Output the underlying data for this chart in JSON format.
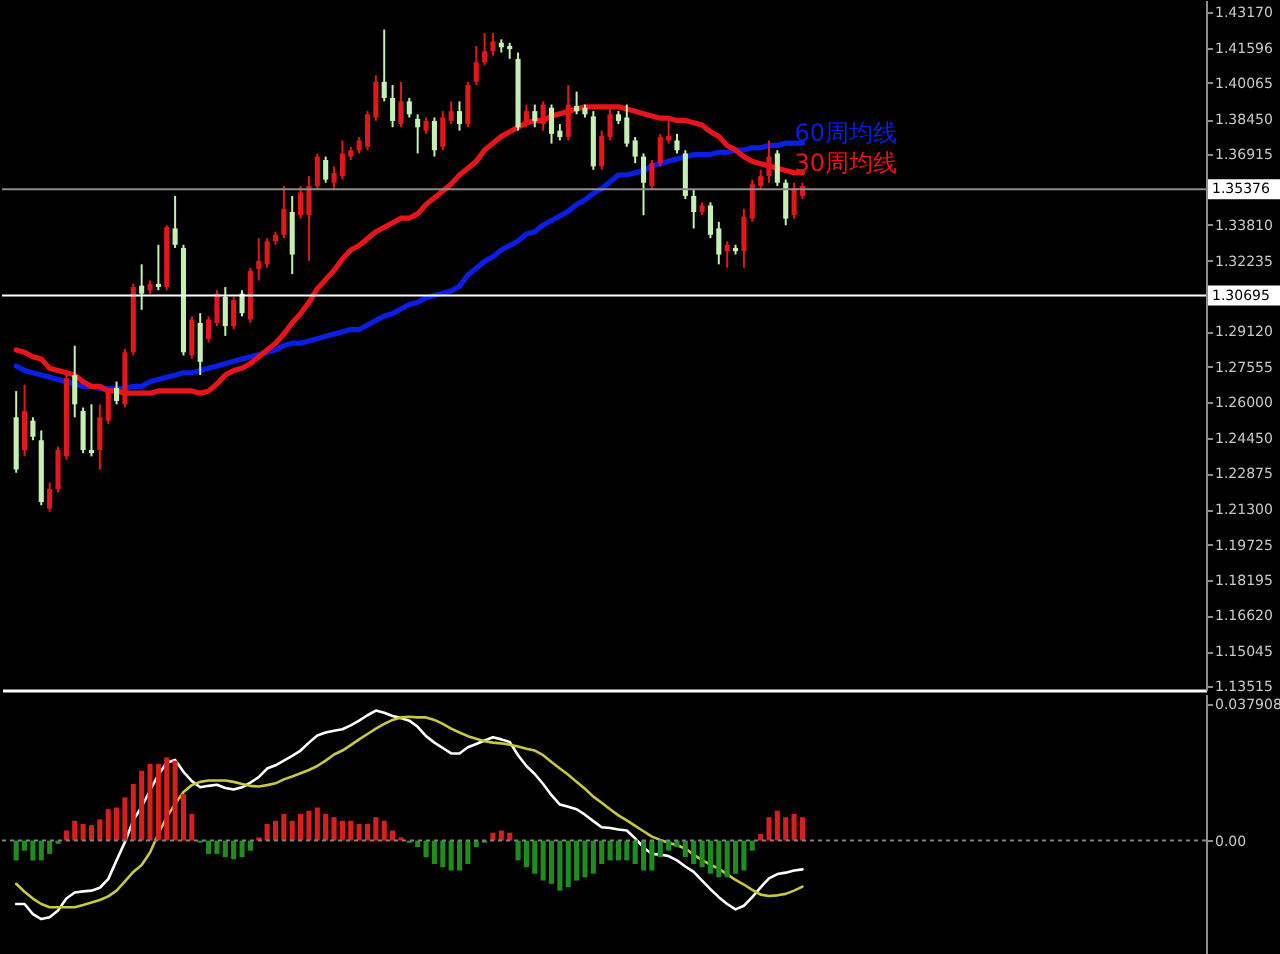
{
  "chart_data": [
    {
      "type": "candlestick",
      "categories": [
        null,
        null,
        null,
        null,
        null,
        null,
        null,
        null,
        null,
        null,
        null,
        null,
        null,
        null,
        null,
        null,
        null,
        null,
        null,
        null,
        null,
        null,
        null,
        null,
        null,
        null,
        null,
        null,
        null,
        null,
        null,
        null,
        null,
        null,
        null,
        null,
        null,
        null,
        null,
        null,
        null,
        null,
        null,
        null,
        null,
        null,
        null,
        null,
        null,
        null,
        null,
        null,
        null,
        null,
        null,
        null,
        null,
        null,
        null,
        null,
        null,
        null,
        null,
        null,
        null,
        null,
        null,
        null,
        null,
        null,
        null,
        null,
        null,
        null,
        null,
        null,
        null,
        null,
        null,
        null,
        null,
        null,
        null,
        null,
        null,
        null,
        null,
        null,
        null,
        null,
        null,
        null,
        null,
        null,
        null
      ],
      "ohlc": [
        [
          1.2534,
          1.2649,
          1.229,
          1.2304
        ],
        [
          1.239,
          1.2677,
          1.2362,
          1.2562
        ],
        [
          1.2519,
          1.2534,
          1.2433,
          1.2448
        ],
        [
          1.2433,
          1.2476,
          1.2147,
          1.2161
        ],
        [
          1.2132,
          1.2247,
          1.2118,
          1.2218
        ],
        [
          1.2218,
          1.2405,
          1.2204,
          1.239
        ],
        [
          1.2362,
          1.2734,
          1.2347,
          1.2706
        ],
        [
          1.272,
          1.2849,
          1.2534,
          1.2591
        ],
        [
          1.2562,
          1.2577,
          1.2376,
          1.239
        ],
        [
          1.239,
          1.2591,
          1.2362,
          1.2376
        ],
        [
          1.239,
          1.2591,
          1.2304,
          1.2534
        ],
        [
          1.2519,
          1.2663,
          1.2505,
          1.2649
        ],
        [
          1.2663,
          1.2691,
          1.2591,
          1.2606
        ],
        [
          1.2591,
          1.2835,
          1.2577,
          1.282
        ],
        [
          1.282,
          1.3121,
          1.2806,
          1.3107
        ],
        [
          1.3113,
          1.3207,
          1.3007,
          1.3078
        ],
        [
          1.3093,
          1.3136,
          1.3078,
          1.3121
        ],
        [
          1.3121,
          1.3293,
          1.3093,
          1.3107
        ],
        [
          1.3107,
          1.3379,
          1.3093,
          1.3371
        ],
        [
          1.3365,
          1.3508,
          1.3279,
          1.3293
        ],
        [
          1.3279,
          1.3293,
          1.2806,
          1.282
        ],
        [
          1.2806,
          1.2978,
          1.2792,
          1.2964
        ],
        [
          1.2949,
          1.2992,
          1.272,
          1.2778
        ],
        [
          1.2878,
          1.2978,
          1.2863,
          1.2964
        ],
        [
          1.2949,
          1.3093,
          1.2935,
          1.3078
        ],
        [
          1.3064,
          1.3107,
          1.2892,
          1.2935
        ],
        [
          1.2935,
          1.3064,
          1.2921,
          1.305
        ],
        [
          1.3078,
          1.3093,
          1.2978,
          1.2992
        ],
        [
          1.2964,
          1.3192,
          1.2949,
          1.3179
        ],
        [
          1.3187,
          1.3322,
          1.3136,
          1.3222
        ],
        [
          1.3207,
          1.3322,
          1.3192,
          1.3308
        ],
        [
          1.3308,
          1.3351,
          1.3293,
          1.3337
        ],
        [
          1.3337,
          1.3552,
          1.3322,
          1.3451
        ],
        [
          1.3437,
          1.3508,
          1.3164,
          1.325
        ],
        [
          1.3423,
          1.3552,
          1.3408,
          1.3523
        ],
        [
          1.3423,
          1.3595,
          1.3222,
          1.3552
        ],
        [
          1.3552,
          1.3695,
          1.3537,
          1.3681
        ],
        [
          1.3666,
          1.3681,
          1.3566,
          1.358
        ],
        [
          1.3566,
          1.3638,
          1.3537,
          1.3609
        ],
        [
          1.3595,
          1.3752,
          1.358,
          1.3695
        ],
        [
          1.3681,
          1.3724,
          1.3666,
          1.3709
        ],
        [
          1.3709,
          1.3767,
          1.3695,
          1.3752
        ],
        [
          1.3724,
          1.3881,
          1.3709,
          1.3867
        ],
        [
          1.3853,
          1.4039,
          1.3838,
          1.401
        ],
        [
          1.401,
          1.424,
          1.3924,
          1.3939
        ],
        [
          1.3939,
          1.3996,
          1.381,
          1.3838
        ],
        [
          1.3824,
          1.401,
          1.381,
          1.3924
        ],
        [
          1.3924,
          1.3939,
          1.3853,
          1.3867
        ],
        [
          1.3847,
          1.3867,
          1.3695,
          1.381
        ],
        [
          1.3795,
          1.3853,
          1.3781,
          1.3838
        ],
        [
          1.3838,
          1.3853,
          1.3681,
          1.3709
        ],
        [
          1.3724,
          1.3881,
          1.3709,
          1.3853
        ],
        [
          1.3838,
          1.3924,
          1.3824,
          1.3881
        ],
        [
          1.3881,
          1.3924,
          1.3795,
          1.3824
        ],
        [
          1.3824,
          1.401,
          1.381,
          1.3996
        ],
        [
          1.401,
          1.4168,
          1.3996,
          1.4096
        ],
        [
          1.4096,
          1.4225,
          1.4082,
          1.4145
        ],
        [
          1.4145,
          1.4225,
          1.4125,
          1.4188
        ],
        [
          1.4182,
          1.4197,
          1.4139,
          1.4162
        ],
        [
          1.4168,
          1.4182,
          1.4111,
          1.4154
        ],
        [
          1.4111,
          1.4139,
          1.3795,
          1.381
        ],
        [
          1.3824,
          1.391,
          1.381,
          1.3881
        ],
        [
          1.3881,
          1.391,
          1.381,
          1.3838
        ],
        [
          1.3824,
          1.3924,
          1.3795,
          1.391
        ],
        [
          1.3896,
          1.391,
          1.3738,
          1.3781
        ],
        [
          1.3795,
          1.3824,
          1.3752,
          1.3767
        ],
        [
          1.3767,
          1.3996,
          1.3752,
          1.391
        ],
        [
          1.3904,
          1.3967,
          1.3867,
          1.3881
        ],
        [
          1.3896,
          1.391,
          1.3853,
          1.3867
        ],
        [
          1.3858,
          1.3881,
          1.3623,
          1.3638
        ],
        [
          1.3638,
          1.3795,
          1.3623,
          1.3772
        ],
        [
          1.3767,
          1.3896,
          1.3752,
          1.3867
        ],
        [
          1.3867,
          1.3881,
          1.3824,
          1.3838
        ],
        [
          1.3853,
          1.391,
          1.3724,
          1.3738
        ],
        [
          1.3752,
          1.3767,
          1.3652,
          1.3681
        ],
        [
          1.3681,
          1.3695,
          1.3423,
          1.3566
        ],
        [
          1.3552,
          1.3666,
          1.3537,
          1.3652
        ],
        [
          1.3652,
          1.3781,
          1.3638,
          1.3767
        ],
        [
          1.3752,
          1.3853,
          1.3738,
          1.3772
        ],
        [
          1.3752,
          1.3781,
          1.3695,
          1.3709
        ],
        [
          1.3695,
          1.3709,
          1.3494,
          1.3508
        ],
        [
          1.3508,
          1.3537,
          1.3365,
          1.3437
        ],
        [
          1.3437,
          1.348,
          1.3423,
          1.3466
        ],
        [
          1.3466,
          1.348,
          1.3322,
          1.3337
        ],
        [
          1.3365,
          1.3394,
          1.3207,
          1.325
        ],
        [
          1.3265,
          1.3308,
          1.3192,
          1.3293
        ],
        [
          1.3279,
          1.3293,
          1.325,
          1.3265
        ],
        [
          1.3265,
          1.3451,
          1.3192,
          1.3417
        ],
        [
          1.3408,
          1.358,
          1.3394,
          1.356
        ],
        [
          1.3552,
          1.3623,
          1.3537,
          1.3595
        ],
        [
          1.3595,
          1.3752,
          1.3566,
          1.3681
        ],
        [
          1.3695,
          1.3709,
          1.3552,
          1.3566
        ],
        [
          1.3566,
          1.358,
          1.3379,
          1.3408
        ],
        [
          1.3423,
          1.3566,
          1.3408,
          1.3543
        ],
        [
          1.3508,
          1.3566,
          1.3494,
          1.3552
        ]
      ],
      "colors": [
        "#c4f0b4",
        "#e3161d",
        "#c4f0b4",
        "#c4f0b4",
        "#e3161d",
        "#e3161d",
        "#e3161d",
        "#c4f0b4",
        "#c4f0b4",
        "#c4f0b4",
        "#e3161d",
        "#e3161d",
        "#c4f0b4",
        "#e3161d",
        "#e3161d",
        "#c4f0b4",
        "#e3161d",
        "#c4f0b4",
        "#e3161d",
        "#c4f0b4",
        "#c4f0b4",
        "#e3161d",
        "#c4f0b4",
        "#e3161d",
        "#e3161d",
        "#c4f0b4",
        "#e3161d",
        "#c4f0b4",
        "#e3161d",
        "#e3161d",
        "#e3161d",
        "#e3161d",
        "#e3161d",
        "#c4f0b4",
        "#e3161d",
        "#e3161d",
        "#e3161d",
        "#c4f0b4",
        "#e3161d",
        "#e3161d",
        "#e3161d",
        "#e3161d",
        "#e3161d",
        "#e3161d",
        "#c4f0b4",
        "#c4f0b4",
        "#e3161d",
        "#c4f0b4",
        "#c4f0b4",
        "#e3161d",
        "#c4f0b4",
        "#e3161d",
        "#e3161d",
        "#c4f0b4",
        "#e3161d",
        "#e3161d",
        "#e3161d",
        "#e3161d",
        "#c4f0b4",
        "#c4f0b4",
        "#c4f0b4",
        "#e3161d",
        "#c4f0b4",
        "#e3161d",
        "#c4f0b4",
        "#c4f0b4",
        "#e3161d",
        "#c4f0b4",
        "#c4f0b4",
        "#c4f0b4",
        "#e3161d",
        "#e3161d",
        "#c4f0b4",
        "#c4f0b4",
        "#c4f0b4",
        "#c4f0b4",
        "#e3161d",
        "#e3161d",
        "#e3161d",
        "#c4f0b4",
        "#c4f0b4",
        "#c4f0b4",
        "#e3161d",
        "#c4f0b4",
        "#c4f0b4",
        "#e3161d",
        "#c4f0b4",
        "#e3161d",
        "#e3161d",
        "#e3161d",
        "#e3161d",
        "#c4f0b4",
        "#c4f0b4",
        "#e3161d",
        "#e3161d"
      ],
      "series": [
        {
          "type": "line",
          "name": "60周均线",
          "color": "#0a1ee6",
          "values": [
            1.276,
            1.274,
            1.273,
            1.272,
            1.271,
            1.27,
            1.269,
            1.268,
            1.267,
            1.267,
            1.266,
            1.266,
            1.266,
            1.266,
            1.267,
            1.267,
            1.269,
            1.27,
            1.271,
            1.272,
            1.273,
            1.273,
            1.274,
            1.275,
            1.276,
            1.277,
            1.278,
            1.279,
            1.28,
            1.281,
            1.282,
            1.283,
            1.285,
            1.286,
            1.286,
            1.287,
            1.288,
            1.289,
            1.29,
            1.291,
            1.292,
            1.292,
            1.294,
            1.296,
            1.298,
            1.299,
            1.301,
            1.303,
            1.304,
            1.306,
            1.307,
            1.308,
            1.309,
            1.311,
            1.316,
            1.319,
            1.322,
            1.324,
            1.327,
            1.329,
            1.331,
            1.334,
            1.335,
            1.338,
            1.34,
            1.342,
            1.344,
            1.347,
            1.349,
            1.352,
            1.354,
            1.357,
            1.36,
            1.36,
            1.361,
            1.362,
            1.364,
            1.365,
            1.366,
            1.367,
            1.368,
            1.369,
            1.369,
            1.369,
            1.37,
            1.37,
            1.371,
            1.371,
            1.372,
            1.372,
            1.373,
            1.373,
            1.374,
            1.374,
            1.374
          ]
        },
        {
          "type": "line",
          "name": "30周均线",
          "color": "#e8141a",
          "values": [
            1.283,
            1.282,
            1.28,
            1.279,
            1.275,
            1.274,
            1.273,
            1.272,
            1.269,
            1.267,
            1.267,
            1.265,
            1.265,
            1.264,
            1.264,
            1.264,
            1.264,
            1.265,
            1.265,
            1.265,
            1.265,
            1.265,
            1.264,
            1.265,
            1.268,
            1.272,
            1.274,
            1.275,
            1.277,
            1.28,
            1.283,
            1.286,
            1.29,
            1.295,
            1.299,
            1.304,
            1.31,
            1.314,
            1.318,
            1.323,
            1.327,
            1.329,
            1.332,
            1.335,
            1.337,
            1.339,
            1.341,
            1.341,
            1.343,
            1.347,
            1.35,
            1.353,
            1.356,
            1.36,
            1.363,
            1.366,
            1.371,
            1.374,
            1.377,
            1.379,
            1.381,
            1.383,
            1.384,
            1.384,
            1.386,
            1.387,
            1.388,
            1.389,
            1.39,
            1.39,
            1.39,
            1.39,
            1.39,
            1.389,
            1.388,
            1.387,
            1.386,
            1.385,
            1.385,
            1.384,
            1.384,
            1.383,
            1.382,
            1.379,
            1.377,
            1.373,
            1.371,
            1.368,
            1.366,
            1.365,
            1.364,
            1.363,
            1.362,
            1.361,
            1.361
          ]
        }
      ],
      "ylim": [
        1.1334,
        1.437
      ],
      "yticks": [
        {
          "value": 1.4317,
          "label": "1.43170"
        },
        {
          "value": 1.41596,
          "label": "1.41596"
        },
        {
          "value": 1.40065,
          "label": "1.40065"
        },
        {
          "value": 1.3845,
          "label": "1.38450"
        },
        {
          "value": 1.36915,
          "label": "1.36915"
        },
        {
          "value": 1.3381,
          "label": "1.33810"
        },
        {
          "value": 1.32235,
          "label": "1.32235"
        },
        {
          "value": 1.2912,
          "label": "1.29120"
        },
        {
          "value": 1.27555,
          "label": "1.27555"
        },
        {
          "value": 1.26,
          "label": "1.26000"
        },
        {
          "value": 1.2445,
          "label": "1.24450"
        },
        {
          "value": 1.22875,
          "label": "1.22875"
        },
        {
          "value": 1.213,
          "label": "1.21300"
        },
        {
          "value": 1.19725,
          "label": "1.19725"
        },
        {
          "value": 1.18195,
          "label": "1.18195"
        },
        {
          "value": 1.1662,
          "label": "1.16620"
        },
        {
          "value": 1.15045,
          "label": "1.15045"
        },
        {
          "value": 1.13515,
          "label": "1.13515"
        }
      ],
      "ref_lines": [
        {
          "axis": "y",
          "value": 1.35376,
          "label": "1.35376",
          "color": "#8c8c8c"
        },
        {
          "axis": "y",
          "value": 1.30695,
          "label": "1.30695",
          "color": "#ffffff"
        }
      ],
      "tick_labels": "y"
    },
    {
      "type": "bar",
      "categories": [
        null,
        null,
        null,
        null,
        null,
        null,
        null,
        null,
        null,
        null,
        null,
        null,
        null,
        null,
        null,
        null,
        null,
        null,
        null,
        null,
        null,
        null,
        null,
        null,
        null,
        null,
        null,
        null,
        null,
        null,
        null,
        null,
        null,
        null,
        null,
        null,
        null,
        null,
        null,
        null,
        null,
        null,
        null,
        null,
        null,
        null,
        null,
        null,
        null,
        null,
        null,
        null,
        null,
        null,
        null,
        null,
        null,
        null,
        null,
        null,
        null,
        null,
        null,
        null,
        null,
        null,
        null,
        null,
        null,
        null,
        null,
        null,
        null,
        null,
        null,
        null,
        null,
        null,
        null,
        null,
        null,
        null,
        null,
        null,
        null,
        null,
        null,
        null,
        null,
        null,
        null,
        null,
        null,
        null,
        null
      ],
      "series": [
        {
          "type": "bar",
          "color": "#d81e1e",
          "values": [
            null,
            null,
            null,
            null,
            null,
            null,
            0.0028,
            0.0055,
            0.0046,
            0.0043,
            0.0059,
            0.0087,
            0.0092,
            0.012,
            0.0157,
            0.0194,
            0.0213,
            0.0213,
            0.0231,
            0.0222,
            0.0129,
            0.0074,
            null,
            null,
            null,
            null,
            null,
            null,
            null,
            0.0009,
            0.0046,
            0.0055,
            0.0074,
            0.0055,
            0.0074,
            0.0083,
            0.0092,
            0.0074,
            0.0065,
            0.0055,
            0.0055,
            0.0046,
            0.0046,
            0.0065,
            0.0055,
            0.0028,
            0.0009,
            null,
            null,
            null,
            null,
            null,
            null,
            null,
            null,
            null,
            null,
            0.0022,
            0.0028,
            0.0022,
            null,
            null,
            null,
            null,
            null,
            null,
            null,
            null,
            null,
            null,
            null,
            null,
            null,
            null,
            null,
            null,
            null,
            null,
            null,
            null,
            null,
            null,
            null,
            null,
            null,
            null,
            null,
            null,
            null,
            0.0018,
            0.0065,
            0.0083,
            0.0065,
            0.0074,
            0.0065
          ]
        },
        {
          "type": "bar",
          "color": "#1f8c1f",
          "values": [
            -0.0055,
            -0.0028,
            -0.0055,
            -0.0055,
            -0.0037,
            -0.0009,
            null,
            null,
            null,
            null,
            null,
            null,
            null,
            null,
            null,
            null,
            null,
            null,
            null,
            null,
            null,
            null,
            -0.0006,
            -0.0037,
            -0.0037,
            -0.0046,
            -0.0052,
            -0.0046,
            -0.0028,
            null,
            null,
            null,
            null,
            null,
            null,
            null,
            null,
            null,
            null,
            null,
            null,
            null,
            null,
            null,
            null,
            null,
            null,
            -0.0006,
            -0.0018,
            -0.0046,
            -0.0065,
            -0.0074,
            -0.0083,
            -0.0083,
            -0.0065,
            -0.0018,
            -0.0006,
            null,
            null,
            null,
            -0.0055,
            -0.0074,
            -0.0092,
            -0.0111,
            -0.012,
            -0.0139,
            -0.0129,
            -0.0111,
            -0.0102,
            -0.0092,
            -0.0065,
            -0.0055,
            -0.0055,
            -0.0055,
            -0.0065,
            -0.0083,
            -0.0083,
            -0.0046,
            -0.0028,
            -0.0018,
            -0.0046,
            -0.0065,
            -0.0074,
            -0.0092,
            -0.0102,
            -0.0102,
            -0.0092,
            -0.0083,
            -0.0028,
            null,
            null,
            null,
            null,
            null,
            null
          ]
        },
        {
          "type": "line",
          "color": "#ffffff",
          "values": [
            -0.0176,
            -0.0176,
            -0.0204,
            -0.0218,
            -0.0213,
            -0.0194,
            -0.0161,
            -0.0144,
            -0.0141,
            -0.0139,
            -0.0131,
            -0.0107,
            -0.0055,
            -0.0004,
            0.0056,
            0.0094,
            0.0139,
            0.0183,
            0.0216,
            0.0224,
            0.0191,
            0.0165,
            0.0148,
            0.0152,
            0.0155,
            0.0146,
            0.0142,
            0.0148,
            0.0161,
            0.0176,
            0.02,
            0.0209,
            0.0222,
            0.0235,
            0.025,
            0.0272,
            0.0292,
            0.03,
            0.0305,
            0.0309,
            0.032,
            0.0333,
            0.0348,
            0.0361,
            0.0355,
            0.0346,
            0.034,
            0.0333,
            0.0316,
            0.029,
            0.0272,
            0.0257,
            0.0242,
            0.0242,
            0.0259,
            0.0268,
            0.0278,
            0.0287,
            0.0281,
            0.0274,
            0.0237,
            0.0207,
            0.0185,
            0.0157,
            0.0126,
            0.01,
            0.0094,
            0.0087,
            0.0072,
            0.0054,
            0.0037,
            0.0035,
            0.0031,
            0.0028,
            0.0006,
            -0.0019,
            -0.0037,
            -0.0039,
            -0.0043,
            -0.0055,
            -0.0072,
            -0.0087,
            -0.0111,
            -0.0135,
            -0.0157,
            -0.0176,
            -0.0191,
            -0.0181,
            -0.0157,
            -0.013,
            -0.0105,
            -0.0093,
            -0.0089,
            -0.0083,
            -0.008
          ]
        },
        {
          "type": "line",
          "color": "#c8c83c",
          "values": [
            -0.012,
            -0.0142,
            -0.0161,
            -0.0176,
            -0.0185,
            -0.0185,
            -0.0185,
            -0.0185,
            -0.0179,
            -0.0172,
            -0.0165,
            -0.0155,
            -0.0139,
            -0.0113,
            -0.0087,
            -0.0068,
            -0.0033,
            0.0019,
            0.0065,
            0.0102,
            0.0135,
            0.0154,
            0.0163,
            0.0167,
            0.0167,
            0.0167,
            0.0163,
            0.0157,
            0.0152,
            0.015,
            0.0154,
            0.0159,
            0.017,
            0.0178,
            0.0187,
            0.0196,
            0.0207,
            0.0222,
            0.0239,
            0.025,
            0.0265,
            0.0281,
            0.0296,
            0.0311,
            0.0324,
            0.0335,
            0.0342,
            0.0344,
            0.0342,
            0.0342,
            0.0335,
            0.0324,
            0.0311,
            0.03,
            0.029,
            0.0283,
            0.0276,
            0.0272,
            0.027,
            0.0266,
            0.0261,
            0.0255,
            0.025,
            0.0237,
            0.0218,
            0.02,
            0.0183,
            0.0163,
            0.0144,
            0.0122,
            0.0105,
            0.0087,
            0.007,
            0.0056,
            0.0041,
            0.0026,
            0.0011,
            0.0002,
            -0.0006,
            -0.0013,
            -0.0022,
            -0.0039,
            -0.0054,
            -0.0067,
            -0.0078,
            -0.0094,
            -0.0109,
            -0.0122,
            -0.0137,
            -0.015,
            -0.0154,
            -0.0152,
            -0.0148,
            -0.0139,
            -0.0128
          ]
        }
      ],
      "ylim": [
        -0.0326,
        0.0407
      ],
      "yticks": [
        {
          "value": 0.037908,
          "label": "0.037908"
        },
        {
          "value": 0,
          "label": "0.00"
        }
      ],
      "ref_lines": [
        {
          "axis": "y",
          "value": 0,
          "color": "#808080",
          "line_style": "dotted"
        }
      ],
      "tick_labels": "y"
    }
  ]
}
